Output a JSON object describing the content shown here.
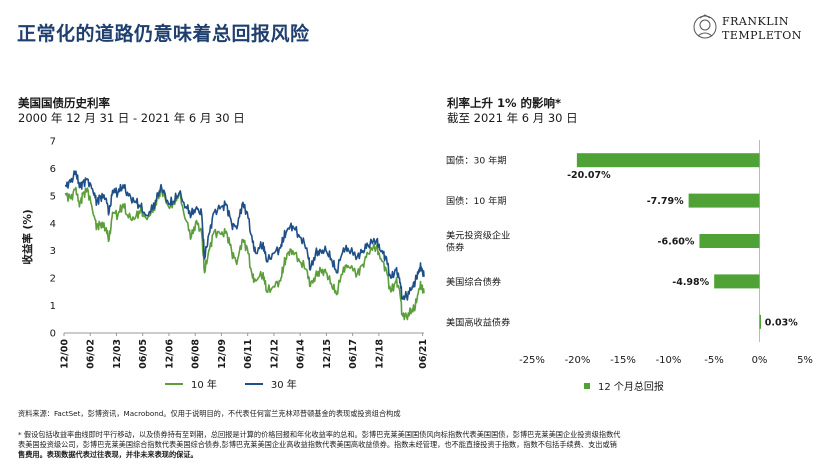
{
  "header": {
    "title": "正常化的道路仍意味着总回报风险",
    "logo_line1": "FRANKLIN",
    "logo_line2": "TEMPLETON"
  },
  "left_chart": {
    "title": "美国国债历史利率",
    "subtitle": "2000 年 12 月 31 日  -  2021 年 6 月 30 日",
    "ylabel": "收益率 (%)",
    "legend": [
      "10 年",
      "30 年"
    ]
  },
  "right_chart": {
    "title": "利率上升 1% 的影响*",
    "subtitle": "截至 2021 年 6 月 30 日",
    "legend": "12 个月总回报"
  },
  "colors": {
    "ten_year": "#5b9e3a",
    "thirty_year": "#1e4f87",
    "bar": "#4fa336",
    "title": "#1f3f6e"
  },
  "chart_data": [
    {
      "type": "line",
      "title": "美国国债历史利率",
      "subtitle": "2000 年 12 月 31 日  -  2021 年 6 月 30 日",
      "ylabel": "收益率 (%)",
      "ylim": [
        0,
        7
      ],
      "yticks": [
        0,
        1,
        2,
        3,
        4,
        5,
        6,
        7
      ],
      "xlim": [
        2000.92,
        2021.5
      ],
      "xtick_labels": [
        "12/00",
        "06/02",
        "12/03",
        "06/05",
        "12/06",
        "06/08",
        "12/09",
        "06/11",
        "12/12",
        "06/14",
        "12/15",
        "06/17",
        "12/18",
        "06/21"
      ],
      "xtick_positions": [
        2000.92,
        2002.42,
        2003.92,
        2005.42,
        2006.92,
        2008.42,
        2009.92,
        2011.42,
        2012.92,
        2014.42,
        2015.92,
        2017.42,
        2018.92,
        2021.42
      ],
      "legend_position": "bottom",
      "series": [
        {
          "name": "10 年",
          "x": [
            2001.0,
            2001.3,
            2001.6,
            2001.8,
            2002.0,
            2002.3,
            2002.6,
            2002.8,
            2003.0,
            2003.3,
            2003.5,
            2003.7,
            2004.0,
            2004.3,
            2004.6,
            2005.0,
            2005.3,
            2005.6,
            2006.0,
            2006.3,
            2006.5,
            2006.9,
            2007.2,
            2007.5,
            2007.9,
            2008.2,
            2008.5,
            2008.8,
            2008.95,
            2009.2,
            2009.5,
            2009.9,
            2010.2,
            2010.5,
            2010.8,
            2011.1,
            2011.4,
            2011.7,
            2011.9,
            2012.3,
            2012.5,
            2012.9,
            2013.3,
            2013.5,
            2013.7,
            2014.0,
            2014.4,
            2014.8,
            2015.0,
            2015.3,
            2015.6,
            2015.9,
            2016.2,
            2016.5,
            2016.9,
            2017.2,
            2017.7,
            2018.0,
            2018.3,
            2018.8,
            2019.0,
            2019.3,
            2019.6,
            2019.9,
            2020.1,
            2020.25,
            2020.5,
            2020.8,
            2021.0,
            2021.2,
            2021.35,
            2021.5
          ],
          "y": [
            5.1,
            4.9,
            5.3,
            4.6,
            5.1,
            5.2,
            4.3,
            3.9,
            4.0,
            3.8,
            3.4,
            4.4,
            4.3,
            4.7,
            4.2,
            4.2,
            4.5,
            4.2,
            4.4,
            5.0,
            5.2,
            4.6,
            4.7,
            5.1,
            4.1,
            3.5,
            4.1,
            3.6,
            2.2,
            3.0,
            3.7,
            3.6,
            3.7,
            3.0,
            2.5,
            3.4,
            3.1,
            2.0,
            1.9,
            2.2,
            1.5,
            1.7,
            1.9,
            2.5,
            2.9,
            3.0,
            2.6,
            2.3,
            1.7,
            2.1,
            2.3,
            2.2,
            1.8,
            1.4,
            2.4,
            2.4,
            2.2,
            2.5,
            2.9,
            3.2,
            2.7,
            2.4,
            1.5,
            1.9,
            1.6,
            0.7,
            0.6,
            0.8,
            0.95,
            1.6,
            1.75,
            1.45
          ]
        },
        {
          "name": "30 年",
          "x": [
            2001.0,
            2001.3,
            2001.6,
            2001.8,
            2002.0,
            2002.3,
            2002.6,
            2002.8,
            2003.0,
            2003.3,
            2003.5,
            2003.7,
            2004.0,
            2004.3,
            2004.6,
            2005.0,
            2005.3,
            2005.6,
            2006.0,
            2006.3,
            2006.5,
            2006.9,
            2007.2,
            2007.5,
            2007.9,
            2008.2,
            2008.5,
            2008.8,
            2008.95,
            2009.2,
            2009.5,
            2009.9,
            2010.2,
            2010.5,
            2010.8,
            2011.1,
            2011.4,
            2011.7,
            2011.9,
            2012.3,
            2012.5,
            2012.9,
            2013.3,
            2013.5,
            2013.7,
            2014.0,
            2014.4,
            2014.8,
            2015.0,
            2015.3,
            2015.6,
            2015.9,
            2016.2,
            2016.5,
            2016.9,
            2017.2,
            2017.7,
            2018.0,
            2018.3,
            2018.8,
            2019.0,
            2019.3,
            2019.6,
            2019.9,
            2020.1,
            2020.25,
            2020.5,
            2020.8,
            2021.0,
            2021.2,
            2021.35,
            2021.5
          ],
          "y": [
            5.4,
            5.5,
            5.9,
            5.3,
            5.5,
            5.6,
            5.1,
            4.8,
            5.0,
            4.9,
            4.4,
            5.2,
            5.1,
            5.4,
            5.0,
            4.8,
            4.6,
            4.3,
            4.5,
            5.1,
            5.3,
            4.7,
            4.8,
            5.1,
            4.6,
            4.3,
            4.6,
            4.3,
            2.7,
            3.6,
            4.4,
            4.6,
            4.7,
            4.0,
            3.8,
            4.7,
            4.4,
            3.3,
            2.9,
            3.3,
            2.6,
            2.9,
            3.1,
            3.5,
            3.8,
            3.9,
            3.5,
            3.1,
            2.3,
            2.9,
            3.0,
            3.0,
            2.7,
            2.2,
            3.1,
            3.0,
            2.8,
            3.0,
            3.2,
            3.4,
            3.0,
            2.8,
            2.0,
            2.3,
            2.0,
            1.3,
            1.35,
            1.6,
            1.9,
            2.3,
            2.4,
            2.05
          ]
        }
      ]
    },
    {
      "type": "bar",
      "orientation": "horizontal",
      "title": "利率上升 1% 的影响*",
      "subtitle": "截至 2021 年 6 月 30 日",
      "categories": [
        "国债：30 年期",
        "国债：10 年期",
        "美元投资级企业\n债券",
        "美国综合债券",
        "美国高收益债券"
      ],
      "values": [
        -20.07,
        -7.79,
        -6.6,
        -4.98,
        0.03
      ],
      "labels": [
        "-20.07%",
        "-7.79%",
        "-6.60%",
        "-4.98%",
        "0.03%"
      ],
      "xlim": [
        -25,
        5
      ],
      "xticks": [
        -25,
        -20,
        -15,
        -10,
        -5,
        0,
        5
      ],
      "xtick_labels": [
        "-25%",
        "-20%",
        "-15%",
        "-10%",
        "-5%",
        "0%",
        "5%"
      ],
      "legend": [
        "12 个月总回报"
      ],
      "legend_position": "bottom"
    }
  ],
  "footnotes": {
    "source": "资料来源：FactSet，彭博资讯，Macrobond。仅用于说明目的，不代表任何富兰克林邓普顿基金的表现或投资组合构成",
    "note_line1": "* 假设包括收益率曲线即时平行移动，以及债券持有至到期，总回报是计算的价格回报和年化收益率的总和。彭博巴克莱美国国债风向标指数代表美国国债，彭博巴克莱美国企业投资级指数代",
    "note_line2": "表美国投资级公司，彭博巴克莱美国综合指数代表美国综合债券,彭博巴克莱美国企业高收益指数代表美国高收益债券。指数未经管理，也不能直接投资于指数，指数不包括手续费、支出或销",
    "note_line3": "售费用。表现数据代表过往表现，并非未来表现的保证。"
  }
}
